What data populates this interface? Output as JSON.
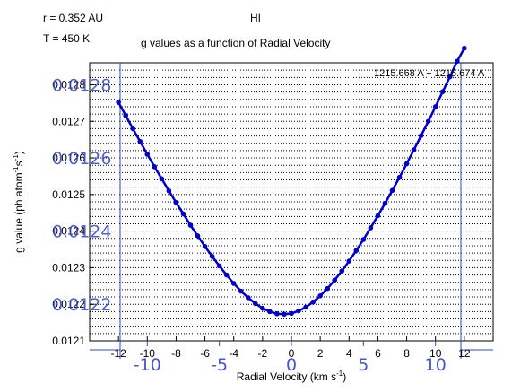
{
  "header": {
    "r_label": "r = 0.352 AU",
    "t_label": "T = 450 K",
    "species": "HI",
    "title": "g values as a function of Radial Velocity"
  },
  "chart_data": {
    "type": "line",
    "title": "g values as a function of Radial Velocity",
    "xlabel": "Radial Velocity (km s",
    "xlabel_sup": "-1",
    "xlabel_end": ")",
    "ylabel": "g value (ph atom",
    "ylabel_sup1": "-1",
    "ylabel_mid": "s",
    "ylabel_sup2": "-1",
    "ylabel_end": ")",
    "annotation": "1215.668 A + 1215.674 A",
    "xlim": [
      -14,
      14
    ],
    "ylim": [
      0.0121,
      0.01286
    ],
    "xticks": [
      -12,
      -10,
      -8,
      -6,
      -4,
      -2,
      0,
      2,
      4,
      6,
      8,
      10,
      12
    ],
    "xtick_labels": [
      "-12",
      "-10",
      "-8",
      "-6",
      "-4",
      "-2",
      "0",
      "2",
      "4",
      "6",
      "8",
      "10",
      "12"
    ],
    "yticks": [
      0.0121,
      0.0122,
      0.0123,
      0.0124,
      0.0125,
      0.0126,
      0.0127,
      0.0128
    ],
    "ytick_labels": [
      "0.0121",
      "0.0122",
      "0.0123",
      "0.0124",
      "0.0125",
      "0.0126",
      "0.0127",
      "0.0128"
    ],
    "overlay_x_labels": [
      "-10",
      "-5",
      "0",
      "5",
      "10"
    ],
    "overlay_x_values": [
      -10,
      -5,
      0,
      5,
      10
    ],
    "overlay_y_labels": [
      "0.0128",
      "0.0126",
      "0.0124",
      "0.0122"
    ],
    "overlay_y_values": [
      0.0128,
      0.0126,
      0.0124,
      0.0122
    ],
    "grid": true,
    "line_color": "#0000cc",
    "overlay_color": "#3344cc",
    "series": [
      {
        "x": [
          -12,
          -11.5,
          -11,
          -10.5,
          -10,
          -9.5,
          -9,
          -8.5,
          -8,
          -7.5,
          -7,
          -6.5,
          -6,
          -5.5,
          -5,
          -4.5,
          -4,
          -3.5,
          -3,
          -2.5,
          -2,
          -1.5,
          -1,
          -0.5,
          0,
          0.5,
          1,
          1.5,
          2,
          2.5,
          3,
          3.5,
          4,
          4.5,
          5,
          5.5,
          6,
          6.5,
          7,
          7.5,
          8,
          8.5,
          9,
          9.5,
          10,
          10.5,
          11,
          11.5,
          12
        ],
        "y": [
          0.012752,
          0.012716,
          0.01268,
          0.012645,
          0.01261,
          0.012576,
          0.012543,
          0.01251,
          0.012478,
          0.012447,
          0.012416,
          0.012387,
          0.012358,
          0.012331,
          0.012305,
          0.01228,
          0.012257,
          0.012236,
          0.012218,
          0.012202,
          0.012189,
          0.01218,
          0.012174,
          0.012173,
          0.012175,
          0.012182,
          0.012192,
          0.012206,
          0.012223,
          0.012243,
          0.012266,
          0.012291,
          0.012318,
          0.012347,
          0.012377,
          0.012409,
          0.012442,
          0.012476,
          0.012511,
          0.012547,
          0.012584,
          0.012622,
          0.012661,
          0.0127,
          0.01274,
          0.012781,
          0.012822,
          0.012864,
          0.0129
        ]
      }
    ]
  }
}
